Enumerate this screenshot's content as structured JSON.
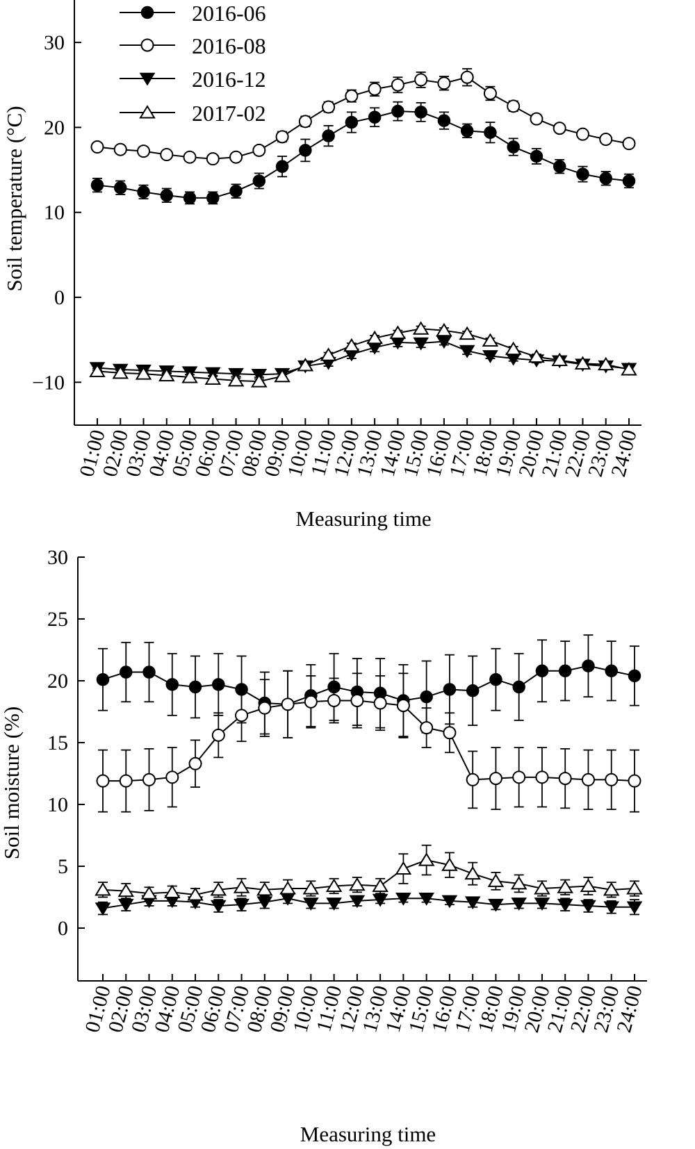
{
  "legend": {
    "entries": [
      {
        "label": "2016-06",
        "marker": "filled-circle"
      },
      {
        "label": "2016-08",
        "marker": "open-circle"
      },
      {
        "label": "2016-12",
        "marker": "filled-triangle-down"
      },
      {
        "label": "2017-02",
        "marker": "open-triangle-up"
      }
    ],
    "placement": "top-left"
  },
  "chart_data": [
    {
      "type": "line",
      "title": "",
      "xlabel": "Measuring time",
      "ylabel": "Soil temperature (°C)",
      "ylim": [
        -15,
        35
      ],
      "yticks": [
        30,
        20,
        10,
        0,
        -10
      ],
      "grid": false,
      "categories": [
        "01:00",
        "02:00",
        "03:00",
        "04:00",
        "05:00",
        "06:00",
        "07:00",
        "08:00",
        "09:00",
        "10:00",
        "11:00",
        "12:00",
        "13:00",
        "14:00",
        "15:00",
        "16:00",
        "17:00",
        "18:00",
        "19:00",
        "20:00",
        "21:00",
        "22:00",
        "23:00",
        "24:00"
      ],
      "series": [
        {
          "name": "2016-06",
          "marker": "filled-circle",
          "values": [
            13.2,
            12.9,
            12.4,
            12.0,
            11.7,
            11.7,
            12.5,
            13.7,
            15.4,
            17.3,
            19.0,
            20.6,
            21.2,
            21.9,
            21.8,
            20.8,
            19.6,
            19.4,
            17.7,
            16.6,
            15.4,
            14.5,
            14.0,
            13.7
          ],
          "errors": [
            0.8,
            0.8,
            0.8,
            0.8,
            0.7,
            0.7,
            0.8,
            0.9,
            1.2,
            1.3,
            1.2,
            1.2,
            1.1,
            1.1,
            1.1,
            1.0,
            0.8,
            1.2,
            1.0,
            0.9,
            0.8,
            0.9,
            0.8,
            0.8
          ]
        },
        {
          "name": "2016-08",
          "marker": "open-circle",
          "values": [
            17.7,
            17.4,
            17.2,
            16.8,
            16.5,
            16.3,
            16.5,
            17.3,
            18.9,
            20.7,
            22.4,
            23.7,
            24.5,
            25.0,
            25.6,
            25.2,
            25.9,
            24.0,
            22.5,
            21.0,
            19.9,
            19.2,
            18.6,
            18.1
          ],
          "errors": [
            0.4,
            0.4,
            0.4,
            0.4,
            0.4,
            0.4,
            0.4,
            0.5,
            0.6,
            0.6,
            0.6,
            0.7,
            0.8,
            0.9,
            0.9,
            0.8,
            1.0,
            0.8,
            0.6,
            0.5,
            0.4,
            0.4,
            0.4,
            0.4
          ]
        },
        {
          "name": "2016-12",
          "marker": "filled-triangle-down",
          "values": [
            -8.3,
            -8.5,
            -8.6,
            -8.7,
            -8.8,
            -8.9,
            -9.0,
            -9.1,
            -9.0,
            -8.1,
            -7.7,
            -6.7,
            -5.9,
            -5.3,
            -5.4,
            -5.2,
            -6.3,
            -6.9,
            -7.2,
            -7.4,
            -7.5,
            -7.9,
            -8.1,
            -8.4
          ],
          "errors": [
            0.3,
            0.3,
            0.3,
            0.3,
            0.3,
            0.3,
            0.3,
            0.3,
            0.3,
            0.4,
            0.4,
            0.5,
            0.5,
            0.5,
            0.5,
            0.4,
            0.4,
            0.3,
            0.3,
            0.3,
            0.3,
            0.3,
            0.3,
            0.3
          ]
        },
        {
          "name": "2017-02",
          "marker": "open-triangle-up",
          "values": [
            -8.7,
            -8.9,
            -9.0,
            -9.2,
            -9.4,
            -9.6,
            -9.8,
            -9.9,
            -9.3,
            -8.0,
            -6.8,
            -5.7,
            -4.8,
            -4.2,
            -3.7,
            -3.9,
            -4.3,
            -5.1,
            -6.1,
            -7.0,
            -7.4,
            -7.8,
            -7.9,
            -8.5
          ],
          "errors": [
            0.3,
            0.3,
            0.3,
            0.3,
            0.3,
            0.3,
            0.3,
            0.3,
            0.3,
            0.3,
            0.3,
            0.3,
            0.3,
            0.3,
            0.3,
            0.3,
            0.3,
            0.3,
            0.3,
            0.3,
            0.3,
            0.3,
            0.3,
            0.3
          ]
        }
      ]
    },
    {
      "type": "line",
      "title": "",
      "xlabel": "Measuring time",
      "ylabel": "Soil moisture (%)",
      "ylim": [
        -4.3,
        30
      ],
      "yticks": [
        30,
        25,
        20,
        15,
        10,
        5,
        0
      ],
      "grid": false,
      "categories": [
        "01:00",
        "02:00",
        "03:00",
        "04:00",
        "05:00",
        "06:00",
        "07:00",
        "08:00",
        "09:00",
        "10:00",
        "11:00",
        "12:00",
        "13:00",
        "14:00",
        "15:00",
        "16:00",
        "17:00",
        "18:00",
        "19:00",
        "20:00",
        "21:00",
        "22:00",
        "23:00",
        "24:00"
      ],
      "series": [
        {
          "name": "2016-06",
          "marker": "filled-circle",
          "values": [
            20.1,
            20.7,
            20.7,
            19.7,
            19.5,
            19.7,
            19.3,
            18.2,
            18.1,
            18.8,
            19.5,
            19.1,
            19.0,
            18.4,
            18.7,
            19.3,
            19.2,
            20.1,
            19.5,
            20.8,
            20.8,
            21.2,
            20.8,
            20.4
          ],
          "errors": [
            2.5,
            2.4,
            2.4,
            2.5,
            2.5,
            2.5,
            2.7,
            2.5,
            2.7,
            2.5,
            2.7,
            2.7,
            2.8,
            2.9,
            2.9,
            2.8,
            2.8,
            2.5,
            2.7,
            2.5,
            2.4,
            2.5,
            2.4,
            2.4
          ]
        },
        {
          "name": "2016-08",
          "marker": "open-circle",
          "values": [
            11.9,
            11.9,
            12.0,
            12.2,
            13.3,
            15.6,
            17.2,
            17.8,
            18.1,
            18.3,
            18.4,
            18.4,
            18.2,
            18.0,
            16.2,
            15.8,
            12.0,
            12.1,
            12.2,
            12.2,
            12.1,
            12.0,
            12.0,
            11.9
          ],
          "errors": [
            2.5,
            2.5,
            2.5,
            2.4,
            1.9,
            1.8,
            2.1,
            2.3,
            2.7,
            2.1,
            1.8,
            2.2,
            2.2,
            2.6,
            1.6,
            1.6,
            2.3,
            2.5,
            2.4,
            2.4,
            2.4,
            2.4,
            2.4,
            2.5
          ]
        },
        {
          "name": "2016-12",
          "marker": "filled-triangle-down",
          "values": [
            1.6,
            1.9,
            2.2,
            2.2,
            2.1,
            1.8,
            1.9,
            2.1,
            2.4,
            2.0,
            2.0,
            2.2,
            2.3,
            2.4,
            2.4,
            2.2,
            2.1,
            1.9,
            2.0,
            2.0,
            1.9,
            1.8,
            1.7,
            1.7
          ],
          "errors": [
            0.5,
            0.5,
            0.4,
            0.4,
            0.4,
            0.5,
            0.5,
            0.5,
            0.4,
            0.4,
            0.4,
            0.4,
            0.3,
            0.3,
            0.3,
            0.3,
            0.4,
            0.4,
            0.4,
            0.4,
            0.5,
            0.5,
            0.5,
            0.6
          ]
        },
        {
          "name": "2017-02",
          "marker": "open-triangle-up",
          "values": [
            3.1,
            3.0,
            2.8,
            2.9,
            2.7,
            3.1,
            3.3,
            3.1,
            3.2,
            3.2,
            3.4,
            3.5,
            3.4,
            4.8,
            5.5,
            5.1,
            4.4,
            3.8,
            3.6,
            3.2,
            3.3,
            3.4,
            3.1,
            3.2
          ],
          "errors": [
            0.6,
            0.6,
            0.5,
            0.5,
            0.5,
            0.6,
            0.7,
            0.6,
            0.7,
            0.6,
            0.6,
            0.6,
            0.6,
            1.2,
            1.2,
            1.0,
            0.9,
            0.7,
            0.7,
            0.6,
            0.6,
            0.7,
            0.6,
            0.6
          ]
        }
      ]
    }
  ]
}
